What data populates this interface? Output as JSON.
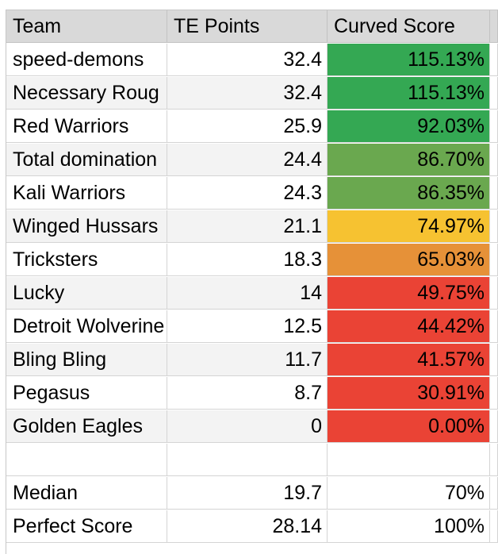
{
  "header": {
    "team": "Team",
    "te_points": "TE Points",
    "curved_score": "Curved Score"
  },
  "rows": [
    {
      "team": "speed-demons",
      "points": "32.4",
      "score": "115.13%",
      "color": "#34a853"
    },
    {
      "team": "Necessary Roug",
      "points": "32.4",
      "score": "115.13%",
      "color": "#34a853"
    },
    {
      "team": "Red Warriors",
      "points": "25.9",
      "score": "92.03%",
      "color": "#34a853"
    },
    {
      "team": "Total domination",
      "points": "24.4",
      "score": "86.70%",
      "color": "#6aa84f"
    },
    {
      "team": "Kali Warriors",
      "points": "24.3",
      "score": "86.35%",
      "color": "#6aa84f"
    },
    {
      "team": "Winged Hussars",
      "points": "21.1",
      "score": "74.97%",
      "color": "#f6c231"
    },
    {
      "team": "Tricksters",
      "points": "18.3",
      "score": "65.03%",
      "color": "#e69138"
    },
    {
      "team": "Lucky",
      "points": "14",
      "score": "49.75%",
      "color": "#ea4335"
    },
    {
      "team": "Detroit Wolverine",
      "points": "12.5",
      "score": "44.42%",
      "color": "#ea4335"
    },
    {
      "team": "Bling Bling",
      "points": "11.7",
      "score": "41.57%",
      "color": "#ea4335"
    },
    {
      "team": "Pegasus",
      "points": "8.7",
      "score": "30.91%",
      "color": "#ea4335"
    },
    {
      "team": "Golden Eagles",
      "points": "0",
      "score": "0.00%",
      "color": "#ea4335"
    }
  ],
  "summary": [
    {
      "label": "Median",
      "points": "19.7",
      "score": "70%"
    },
    {
      "label": "Perfect Score",
      "points": "28.14",
      "score": "100%"
    }
  ]
}
